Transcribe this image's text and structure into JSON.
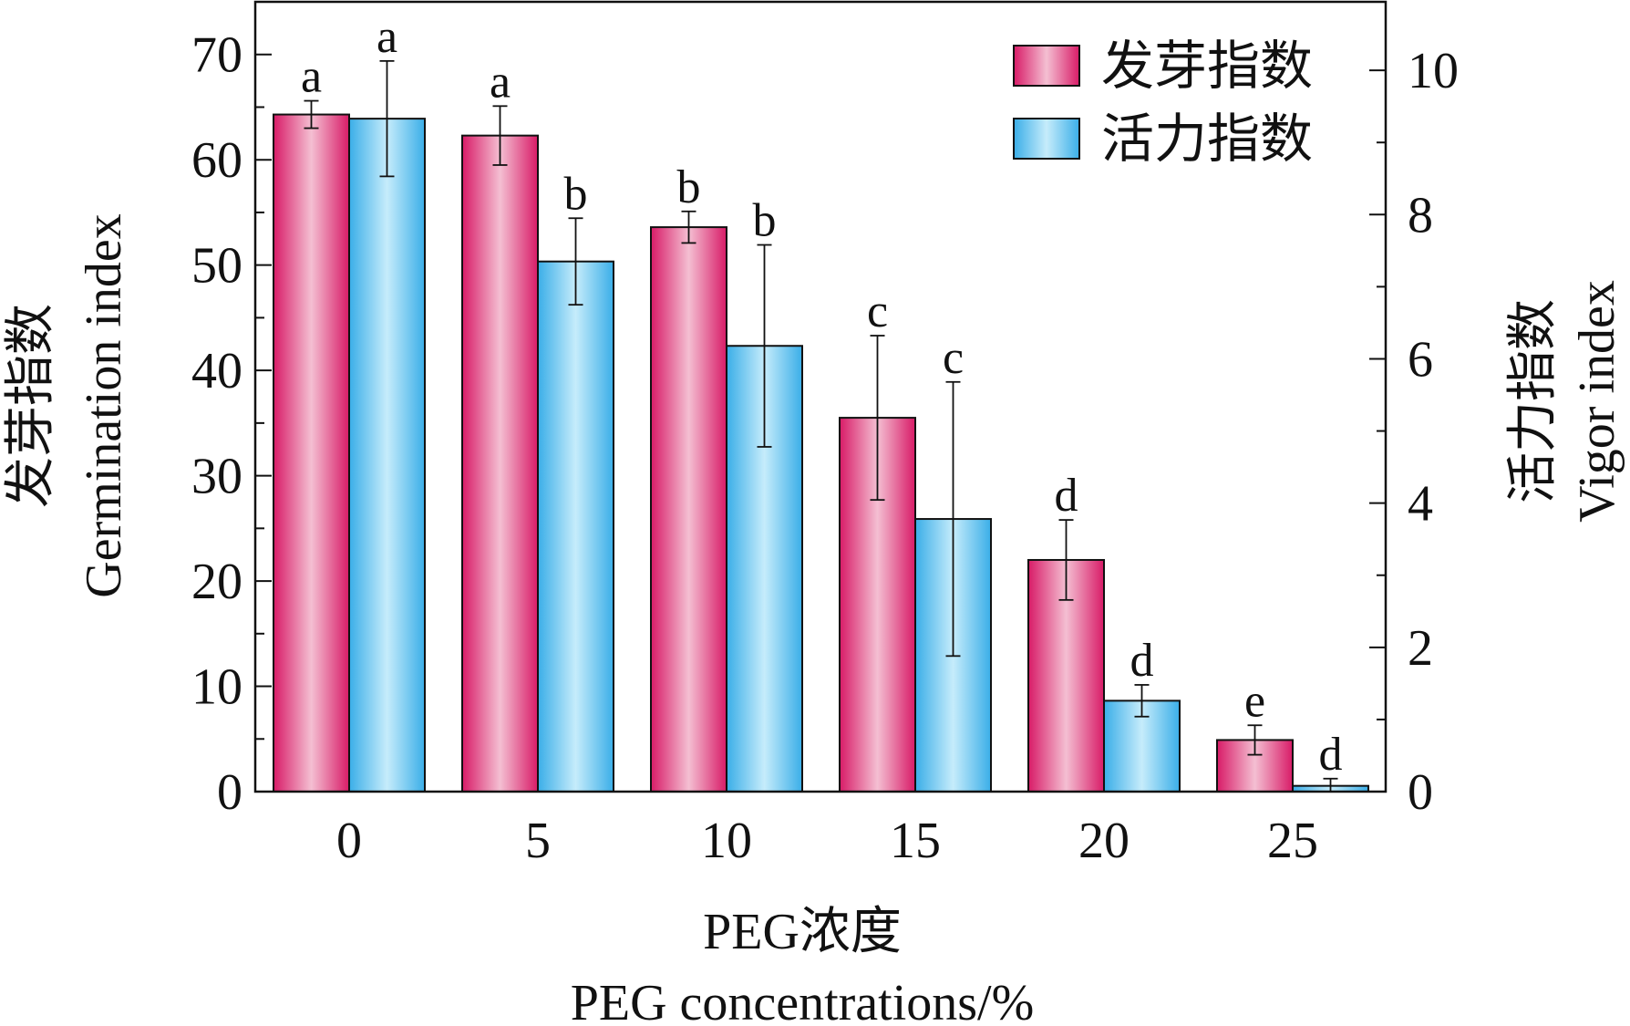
{
  "chart_data": {
    "type": "bar",
    "xlabel_line1": "PEG浓度",
    "xlabel_line2": "PEG concentrations/%",
    "ylabel_left_line1": "发芽指数",
    "ylabel_left_line2": "Germination index",
    "ylabel_right_line1": "活力指数",
    "ylabel_right_line2": "Vigor index",
    "categories": [
      "0",
      "5",
      "10",
      "15",
      "20",
      "25"
    ],
    "y_left": {
      "min": 0,
      "max": 75,
      "ticks": [
        0,
        10,
        20,
        30,
        40,
        50,
        60,
        70
      ],
      "minor_step": 5
    },
    "y_right": {
      "min": 0,
      "max": 10.95,
      "ticks": [
        0,
        2,
        4,
        6,
        8,
        10
      ],
      "minor_step": 1
    },
    "legend_position": "top-right",
    "series": [
      {
        "name": "发芽指数",
        "axis": "left",
        "color_edge": "#d81b67",
        "color_center": "#f4bfd2",
        "values": [
          64.3,
          62.3,
          53.6,
          35.5,
          22.0,
          4.9
        ],
        "errors": [
          1.3,
          2.8,
          1.5,
          7.8,
          3.8,
          1.4
        ],
        "letters": [
          "a",
          "a",
          "b",
          "c",
          "d",
          "e"
        ]
      },
      {
        "name": "活力指数",
        "axis": "right",
        "color_edge": "#3aaee8",
        "color_center": "#c6ecfb",
        "values": [
          9.33,
          7.35,
          6.18,
          3.78,
          1.26,
          0.08
        ],
        "errors": [
          0.8,
          0.6,
          1.4,
          1.9,
          0.22,
          0.1
        ],
        "letters": [
          "a",
          "b",
          "b",
          "c",
          "d",
          "d"
        ]
      }
    ]
  }
}
